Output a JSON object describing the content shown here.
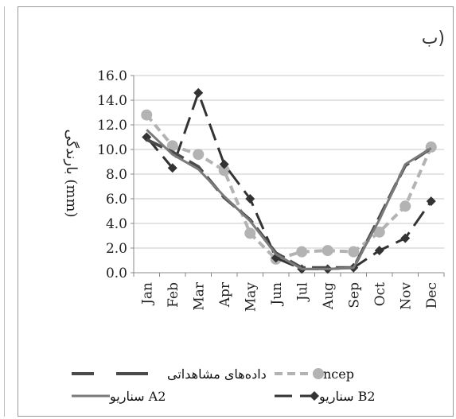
{
  "panel_label": "(ب",
  "chart_data": {
    "type": "line",
    "title": "",
    "xlabel": "",
    "ylabel": "بارندگی (mm)",
    "categories": [
      "Jan",
      "Feb",
      "Mar",
      "Apr",
      "May",
      "Jun",
      "Jul",
      "Aug",
      "Sep",
      "Oct",
      "Nov",
      "Dec"
    ],
    "ylim": [
      0,
      16
    ],
    "yticks": [
      "0.0",
      "2.0",
      "4.0",
      "6.0",
      "8.0",
      "10.0",
      "12.0",
      "14.0",
      "16.0"
    ],
    "grid": "horizontal",
    "legend_position": "bottom",
    "series": [
      {
        "name": "داده‌های مشاهداتی",
        "style": "long-dash-dark",
        "color": "#4a4a4a",
        "values": [
          10.8,
          9.8,
          8.6,
          6.1,
          4.3,
          1.6,
          0.4,
          0.4,
          0.4,
          4.5,
          8.7,
          10.1
        ]
      },
      {
        "name": "ncep",
        "style": "dashed-circle",
        "color": "#b3b3b3",
        "values": [
          12.8,
          10.3,
          9.6,
          8.3,
          3.2,
          1.1,
          1.7,
          1.8,
          1.7,
          3.3,
          5.4,
          10.2
        ]
      },
      {
        "name": "سناریو A2",
        "style": "solid",
        "color": "#7a7a7a",
        "values": [
          11.6,
          9.6,
          8.4,
          6.2,
          4.2,
          1.5,
          0.3,
          0.3,
          0.4,
          4.3,
          8.8,
          10.1
        ]
      },
      {
        "name": "سناریو B2",
        "style": "dash-diamond",
        "color": "#333333",
        "values": [
          11.0,
          8.5,
          14.6,
          8.8,
          6.0,
          1.2,
          0.3,
          0.3,
          0.4,
          1.8,
          2.8,
          5.8
        ]
      }
    ]
  }
}
